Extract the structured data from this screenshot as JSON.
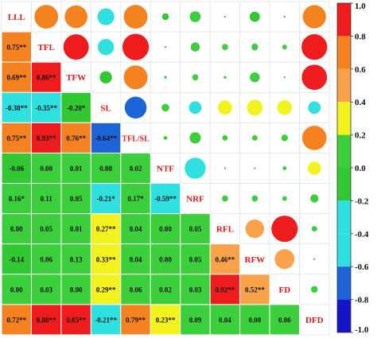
{
  "chart_data": {
    "type": "heatmap",
    "variables": [
      "LLL",
      "TFL",
      "TFW",
      "SL",
      "TFL/SL",
      "NTF",
      "NRF",
      "RFL",
      "RFW",
      "FD",
      "DFD"
    ],
    "matrix": [
      [
        1.0,
        0.75,
        0.69,
        -0.38,
        0.75,
        -0.06,
        0.16,
        0.0,
        -0.14,
        0.0,
        0.72
      ],
      [
        0.75,
        1.0,
        0.86,
        -0.35,
        0.93,
        0.0,
        0.11,
        0.05,
        0.06,
        0.03,
        0.88
      ],
      [
        0.69,
        0.86,
        1.0,
        -0.2,
        0.76,
        0.01,
        0.05,
        0.01,
        0.13,
        0.0,
        0.85
      ],
      [
        -0.38,
        -0.35,
        -0.2,
        1.0,
        -0.64,
        0.08,
        -0.21,
        0.27,
        0.33,
        0.29,
        -0.21
      ],
      [
        0.75,
        0.93,
        0.76,
        -0.64,
        1.0,
        0.02,
        0.17,
        0.04,
        0.04,
        0.06,
        0.79
      ],
      [
        -0.06,
        0.0,
        0.01,
        0.08,
        0.02,
        1.0,
        -0.59,
        0.0,
        0.0,
        0.02,
        0.23
      ],
      [
        0.16,
        0.11,
        0.05,
        -0.21,
        0.17,
        -0.59,
        1.0,
        0.05,
        0.05,
        0.03,
        0.09
      ],
      [
        0.0,
        0.05,
        0.01,
        0.27,
        0.04,
        0.0,
        0.05,
        1.0,
        0.46,
        0.92,
        0.04
      ],
      [
        -0.14,
        0.06,
        0.13,
        0.33,
        0.04,
        0.0,
        0.05,
        0.46,
        1.0,
        0.52,
        0.0
      ],
      [
        0.0,
        0.03,
        0.0,
        0.29,
        0.06,
        0.02,
        0.03,
        0.92,
        0.52,
        1.0,
        0.06
      ],
      [
        0.72,
        0.88,
        0.85,
        -0.21,
        0.79,
        0.23,
        0.09,
        0.04,
        0.0,
        0.06,
        1.0
      ]
    ],
    "lower_labels": [
      [],
      [
        "0.75**"
      ],
      [
        "0.69**",
        "0.86**"
      ],
      [
        "-0.38**",
        "-0.35**",
        "-0.20*"
      ],
      [
        "0.75**",
        "0.93**",
        "0.76**",
        "-0.64**"
      ],
      [
        "-0.06",
        "0.00",
        "0.01",
        "0.08",
        "0.02"
      ],
      [
        "0.16*",
        "0.11",
        "0.05",
        "-0.21*",
        "0.17*",
        "-0.59**"
      ],
      [
        "0.00",
        "0.05",
        "0.01",
        "0.27**",
        "0.04",
        "0.00",
        "0.05"
      ],
      [
        "-0.14",
        "0.06",
        "0.13",
        "0.33**",
        "0.04",
        "0.00",
        "0.05",
        "0.46**"
      ],
      [
        "0.00",
        "0.03",
        "0.00",
        "0.29**",
        "0.06",
        "0.02",
        "0.03",
        "0.92**",
        "0.52**"
      ],
      [
        "0.72**",
        "0.88**",
        "0.85**",
        "-0.21**",
        "0.79**",
        "0.23**",
        "0.09",
        "0.04",
        "0.00",
        "0.06"
      ]
    ],
    "colorbar": {
      "ticks": [
        "1.0",
        "0.8",
        "0.6",
        "0.4",
        "0.2",
        "0.0",
        "-0.2",
        "-0.4",
        "-0.6",
        "-0.8",
        "-1.0"
      ],
      "bands": [
        {
          "min": 0.8,
          "max": 1.0,
          "color": "#ee1c1c"
        },
        {
          "min": 0.6,
          "max": 0.8,
          "color": "#f58220"
        },
        {
          "min": 0.4,
          "max": 0.6,
          "color": "#f9a24a"
        },
        {
          "min": 0.2,
          "max": 0.4,
          "color": "#f4f21e"
        },
        {
          "min": 0.0,
          "max": 0.2,
          "color": "#3ccf3c"
        },
        {
          "min": -0.2,
          "max": 0.0,
          "color": "#32c832"
        },
        {
          "min": -0.4,
          "max": -0.2,
          "color": "#2ee0e0"
        },
        {
          "min": -0.6,
          "max": -0.4,
          "color": "#2ee0e0"
        },
        {
          "min": -0.8,
          "max": -0.6,
          "color": "#1c64d8"
        },
        {
          "min": -1.0,
          "max": -0.8,
          "color": "#1414c8"
        }
      ]
    }
  }
}
